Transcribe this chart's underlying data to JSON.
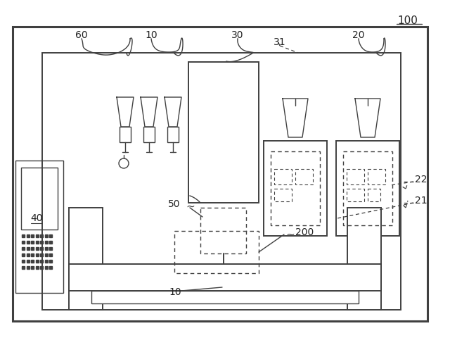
{
  "bg_color": "#ffffff",
  "line_color": "#404040",
  "label_color": "#222222"
}
